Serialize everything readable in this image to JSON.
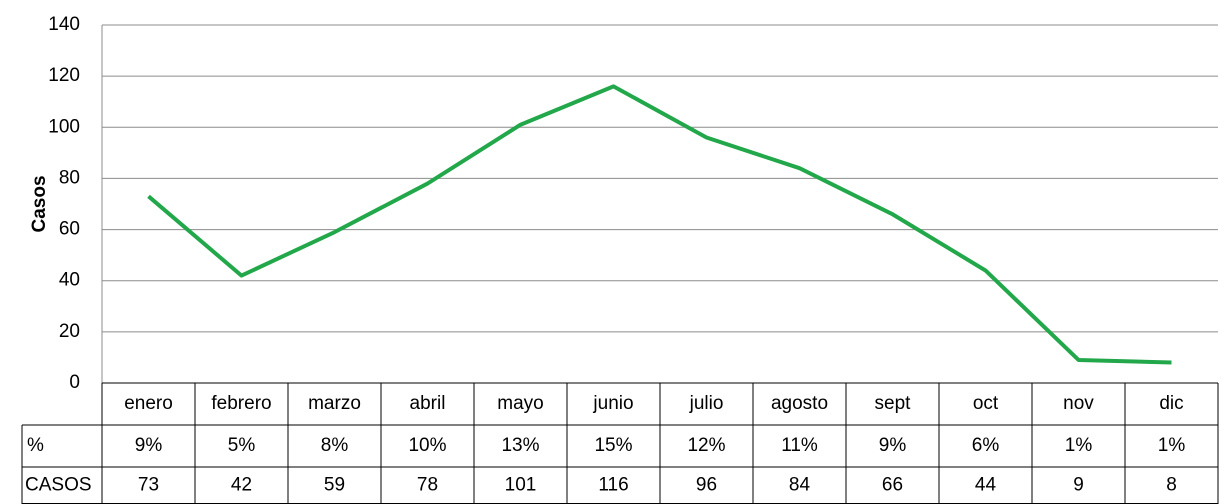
{
  "chart_data": {
    "type": "line",
    "y_label": "Casos",
    "categories": [
      "enero",
      "febrero",
      "marzo",
      "abril",
      "mayo",
      "junio",
      "julio",
      "agosto",
      "sept",
      "oct",
      "nov",
      "dic"
    ],
    "series": [
      {
        "name": "CASOS",
        "color": "#22a84a",
        "values": [
          73,
          42,
          59,
          78,
          101,
          116,
          96,
          84,
          66,
          44,
          9,
          8
        ]
      }
    ],
    "percent_row": {
      "label": "%",
      "cells": [
        "9%",
        "5%",
        "8%",
        "10%",
        "13%",
        "15%",
        "12%",
        "11%",
        "9%",
        "6%",
        "1%",
        "1%"
      ]
    },
    "ylim": [
      0,
      140
    ],
    "yticks": [
      0,
      20,
      40,
      60,
      80,
      100,
      120,
      140
    ],
    "grid": true
  }
}
